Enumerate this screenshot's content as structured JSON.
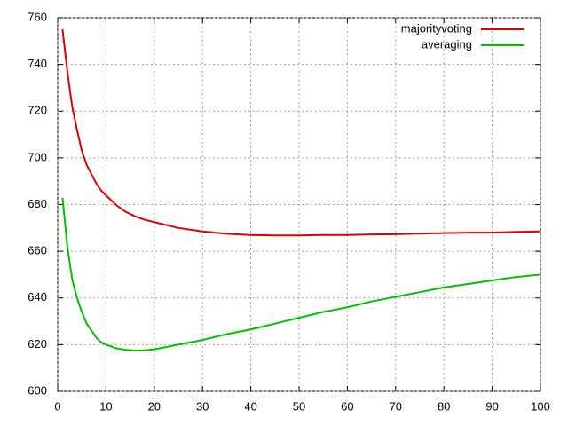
{
  "chart_data": {
    "type": "line",
    "x": [
      1,
      2,
      3,
      4,
      5,
      6,
      7,
      8,
      9,
      10,
      12,
      14,
      16,
      18,
      20,
      25,
      30,
      35,
      40,
      45,
      50,
      55,
      60,
      65,
      70,
      75,
      80,
      85,
      90,
      95,
      100
    ],
    "series": [
      {
        "name": "majorityvoting",
        "color": "#e00000",
        "values": [
          755,
          737,
          722,
          712,
          703,
          697,
          693,
          689,
          686,
          684,
          680,
          677,
          675,
          673.5,
          672.5,
          670,
          668.5,
          667.5,
          667,
          666.8,
          666.8,
          667,
          667,
          667.2,
          667.3,
          667.6,
          667.8,
          668,
          668,
          668.3,
          668.5
        ]
      },
      {
        "name": "averaging",
        "color": "#00c000",
        "values": [
          683,
          662,
          648,
          640,
          634,
          629,
          626,
          623,
          621,
          620,
          618.5,
          617.8,
          617.5,
          617.6,
          618,
          620,
          622,
          624.5,
          626.5,
          629,
          631.5,
          634,
          636,
          638.5,
          640.5,
          642.5,
          644.5,
          646,
          647.5,
          649,
          650
        ]
      }
    ],
    "xlim": [
      0,
      100
    ],
    "xticks": [
      0,
      10,
      20,
      30,
      40,
      50,
      60,
      70,
      80,
      90,
      100
    ],
    "ylim": [
      600,
      760
    ],
    "yticks": [
      600,
      620,
      640,
      660,
      680,
      700,
      720,
      740,
      760
    ],
    "grid": true,
    "legend": "top-right"
  }
}
